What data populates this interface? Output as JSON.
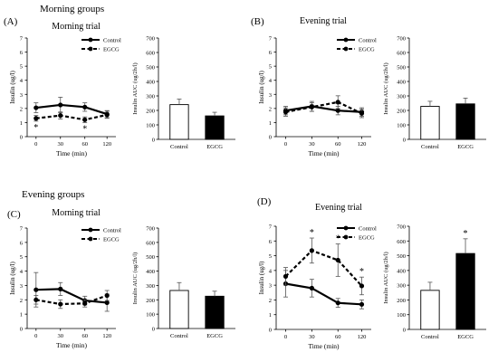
{
  "panel_labels": [
    "(A)",
    "(B)",
    "(C)",
    "(D)"
  ],
  "group_titles": [
    "Morning groups",
    "Evening groups"
  ],
  "chart_data": [
    {
      "type": "line",
      "panel": "A",
      "title": "Morning trial",
      "xlabel": "Time (min)",
      "ylabel": "Insulin (ug/l)",
      "x": [
        0,
        30,
        60,
        120
      ],
      "ylim": [
        0,
        7
      ],
      "yticks": [
        0,
        1,
        2,
        3,
        4,
        5,
        6,
        7
      ],
      "legend_position": "top-right",
      "grid": false,
      "series": [
        {
          "name": "Control",
          "style": "solid",
          "values": [
            2.05,
            2.25,
            2.1,
            1.6
          ],
          "errors": [
            0.35,
            0.55,
            0.3,
            0.25
          ]
        },
        {
          "name": "EGCG",
          "style": "dashed",
          "values": [
            1.3,
            1.5,
            1.2,
            1.55
          ],
          "errors": [
            0.2,
            0.25,
            0.2,
            0.25
          ]
        }
      ],
      "significance": [
        {
          "x": 0,
          "mark": "*"
        },
        {
          "x": 60,
          "mark": "*"
        }
      ]
    },
    {
      "type": "bar",
      "panel": "A",
      "ylabel": "Insulin AUC (ug/2h/l)",
      "categories": [
        "Control",
        "EGCG"
      ],
      "values": [
        240,
        162
      ],
      "errors": [
        38,
        25
      ],
      "ylim": [
        0,
        700
      ],
      "yticks": [
        0,
        100,
        200,
        300,
        400,
        500,
        600,
        700
      ],
      "significance": []
    },
    {
      "type": "line",
      "panel": "B",
      "title": "Evening trial",
      "xlabel": "Time (min)",
      "ylabel": "Insulin (ug/l)",
      "x": [
        0,
        30,
        60,
        120
      ],
      "ylim": [
        0,
        7
      ],
      "yticks": [
        0,
        1,
        2,
        3,
        4,
        5,
        6,
        7
      ],
      "legend_position": "top-right",
      "grid": false,
      "series": [
        {
          "name": "Control",
          "style": "solid",
          "values": [
            1.85,
            2.15,
            1.85,
            1.75
          ],
          "errors": [
            0.3,
            0.35,
            0.3,
            0.3
          ]
        },
        {
          "name": "EGCG",
          "style": "dashed",
          "values": [
            1.75,
            2.1,
            2.45,
            1.65
          ],
          "errors": [
            0.3,
            0.3,
            0.45,
            0.3
          ]
        }
      ],
      "significance": []
    },
    {
      "type": "bar",
      "panel": "B",
      "ylabel": "Insulin AUC (ug/2h/l)",
      "categories": [
        "Control",
        "EGCG"
      ],
      "values": [
        228,
        245
      ],
      "errors": [
        35,
        40
      ],
      "ylim": [
        0,
        700
      ],
      "yticks": [
        0,
        100,
        200,
        300,
        400,
        500,
        600,
        700
      ],
      "significance": []
    },
    {
      "type": "line",
      "panel": "C",
      "title": "Morning trial",
      "xlabel": "Time (min)",
      "ylabel": "Insulin (ug/l)",
      "x": [
        0,
        30,
        60,
        120
      ],
      "ylim": [
        0,
        7
      ],
      "yticks": [
        0,
        1,
        2,
        3,
        4,
        5,
        6,
        7
      ],
      "legend_position": "top-right",
      "grid": false,
      "series": [
        {
          "name": "Control",
          "style": "solid",
          "values": [
            2.7,
            2.75,
            1.95,
            1.8
          ],
          "errors": [
            1.2,
            0.45,
            0.3,
            0.6
          ]
        },
        {
          "name": "EGCG",
          "style": "dashed",
          "values": [
            2.0,
            1.7,
            1.75,
            2.3
          ],
          "errors": [
            0.3,
            0.3,
            0.25,
            0.35
          ]
        }
      ],
      "significance": []
    },
    {
      "type": "bar",
      "panel": "C",
      "ylabel": "Insulin AUC (ug/2h/l)",
      "categories": [
        "Control",
        "EGCG"
      ],
      "values": [
        265,
        225
      ],
      "errors": [
        55,
        35
      ],
      "ylim": [
        0,
        700
      ],
      "yticks": [
        0,
        100,
        200,
        300,
        400,
        500,
        600,
        700
      ],
      "significance": []
    },
    {
      "type": "line",
      "panel": "D",
      "title": "Evening trial",
      "xlabel": "Time (min)",
      "ylabel": "Insulin (ug/l)",
      "x": [
        0,
        30,
        60,
        120
      ],
      "ylim": [
        0,
        7
      ],
      "yticks": [
        0,
        1,
        2,
        3,
        4,
        5,
        6,
        7
      ],
      "legend_position": "top-right",
      "grid": false,
      "series": [
        {
          "name": "Control",
          "style": "solid",
          "values": [
            3.1,
            2.8,
            1.8,
            1.7
          ],
          "errors": [
            0.9,
            0.6,
            0.3,
            0.3
          ]
        },
        {
          "name": "EGCG",
          "style": "dashed",
          "values": [
            3.6,
            5.35,
            4.7,
            2.95
          ],
          "errors": [
            0.6,
            0.85,
            1.1,
            0.6
          ]
        }
      ],
      "significance": [
        {
          "x": 30,
          "mark": "*"
        },
        {
          "x": 60,
          "mark": "*"
        },
        {
          "x": 120,
          "mark": "*"
        }
      ]
    },
    {
      "type": "bar",
      "panel": "D",
      "ylabel": "Insulin AUC (ug/2h/l)",
      "categories": [
        "Control",
        "EGCG"
      ],
      "values": [
        265,
        515
      ],
      "errors": [
        55,
        100
      ],
      "ylim": [
        0,
        700
      ],
      "yticks": [
        0,
        100,
        200,
        300,
        400,
        500,
        600,
        700
      ],
      "significance": [
        {
          "category": "EGCG",
          "mark": "*"
        }
      ]
    }
  ]
}
